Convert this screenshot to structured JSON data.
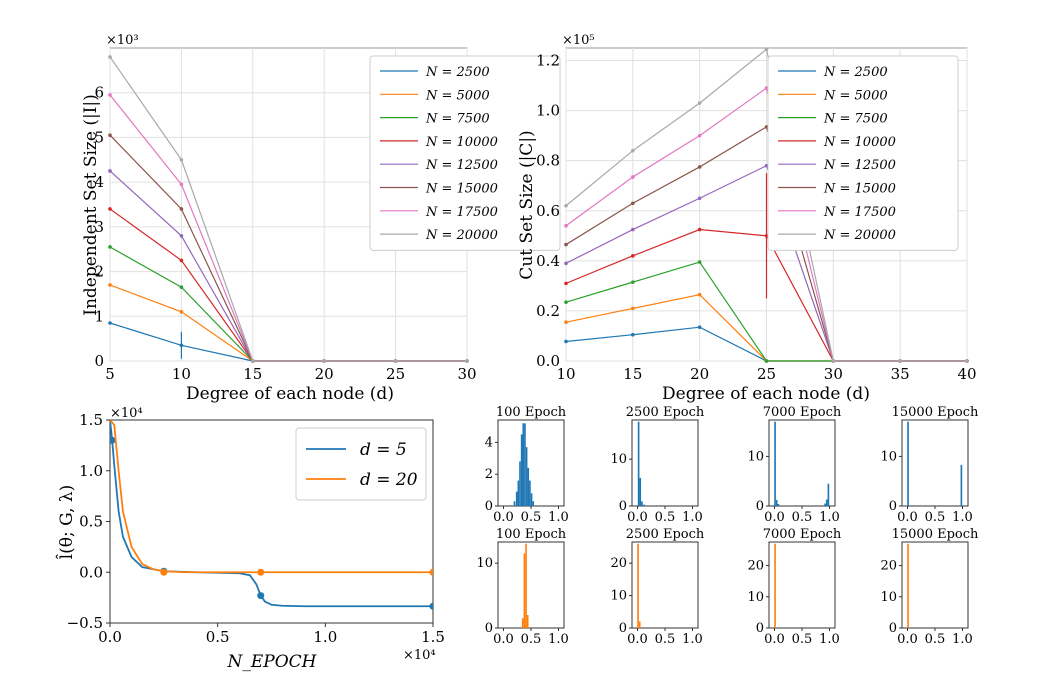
{
  "chart_data": [
    {
      "type": "line",
      "ylabel": "Independent Set Size (|I|)",
      "xlabel": "Degree of each node (d)",
      "y_multiplier": "×10³",
      "x": [
        5,
        10,
        15,
        20,
        25,
        30
      ],
      "xlim": [
        5,
        30
      ],
      "ylim": [
        0,
        7
      ],
      "xticks": [
        "5",
        "10",
        "15",
        "20",
        "25",
        "30"
      ],
      "yticks": [
        "0",
        "1",
        "2",
        "3",
        "4",
        "5",
        "6"
      ],
      "ytick_values": [
        0,
        1,
        2,
        3,
        4,
        5,
        6
      ],
      "grid": true,
      "legend": "top-right",
      "series": [
        {
          "name": "N = 2500",
          "color": "#1f77b4",
          "values": [
            0.85,
            0.35,
            0,
            0,
            0,
            0
          ],
          "err": [
            0,
            0.3,
            0,
            0,
            0,
            0
          ]
        },
        {
          "name": "N = 5000",
          "color": "#ff7f0e",
          "values": [
            1.7,
            1.1,
            0,
            0,
            0,
            0
          ]
        },
        {
          "name": "N = 7500",
          "color": "#2ca02c",
          "values": [
            2.55,
            1.65,
            0,
            0,
            0,
            0
          ]
        },
        {
          "name": "N = 10000",
          "color": "#d62728",
          "values": [
            3.4,
            2.25,
            0,
            0,
            0,
            0
          ]
        },
        {
          "name": "N = 12500",
          "color": "#9467bd",
          "values": [
            4.25,
            2.8,
            0,
            0,
            0,
            0
          ]
        },
        {
          "name": "N = 15000",
          "color": "#8c564b",
          "values": [
            5.05,
            3.4,
            0,
            0,
            0,
            0
          ]
        },
        {
          "name": "N = 17500",
          "color": "#e377c2",
          "values": [
            5.95,
            3.95,
            0,
            0,
            0,
            0
          ]
        },
        {
          "name": "N = 20000",
          "color": "#a9a9a9",
          "values": [
            6.8,
            4.5,
            0,
            0,
            0,
            0
          ]
        }
      ]
    },
    {
      "type": "line",
      "ylabel": "Cut Set Size (|C|)",
      "xlabel": "Degree of each node (d)",
      "y_multiplier": "×10⁵",
      "x": [
        10,
        15,
        20,
        25,
        30,
        35,
        40
      ],
      "xlim": [
        10,
        40
      ],
      "ylim": [
        0,
        1.25
      ],
      "xticks": [
        "10",
        "15",
        "20",
        "25",
        "30",
        "35",
        "40"
      ],
      "yticks": [
        "0.0",
        "0.2",
        "0.4",
        "0.6",
        "0.8",
        "1.0",
        "1.2"
      ],
      "ytick_values": [
        0,
        0.2,
        0.4,
        0.6,
        0.8,
        1.0,
        1.2
      ],
      "grid": true,
      "legend": "top-right",
      "series": [
        {
          "name": "N = 2500",
          "color": "#1f77b4",
          "values": [
            0.078,
            0.105,
            0.135,
            0,
            0,
            0,
            0
          ]
        },
        {
          "name": "N = 5000",
          "color": "#ff7f0e",
          "values": [
            0.155,
            0.21,
            0.265,
            0,
            0,
            0,
            0
          ]
        },
        {
          "name": "N = 7500",
          "color": "#2ca02c",
          "values": [
            0.235,
            0.315,
            0.395,
            0,
            0,
            0,
            0
          ]
        },
        {
          "name": "N = 10000",
          "color": "#d62728",
          "values": [
            0.31,
            0.42,
            0.525,
            0.5,
            0,
            0,
            0
          ],
          "err": [
            0,
            0,
            0,
            0.25,
            0,
            0,
            0
          ]
        },
        {
          "name": "N = 12500",
          "color": "#9467bd",
          "values": [
            0.39,
            0.525,
            0.65,
            0.78,
            0,
            0,
            0
          ]
        },
        {
          "name": "N = 15000",
          "color": "#8c564b",
          "values": [
            0.465,
            0.63,
            0.775,
            0.935,
            0,
            0,
            0
          ]
        },
        {
          "name": "N = 17500",
          "color": "#e377c2",
          "values": [
            0.54,
            0.735,
            0.9,
            1.09,
            0,
            0,
            0
          ]
        },
        {
          "name": "N = 20000",
          "color": "#a9a9a9",
          "values": [
            0.62,
            0.84,
            1.03,
            1.245,
            0,
            0,
            0
          ]
        }
      ]
    },
    {
      "type": "line",
      "ylabel": "l̂(θ; G, λ)",
      "xlabel": "N_EPOCH",
      "x_multiplier": "×10⁴",
      "y_multiplier": "×10⁴",
      "xlim": [
        0,
        1.5
      ],
      "ylim": [
        -0.5,
        1.5
      ],
      "xticks": [
        "0.0",
        "0.5",
        "1.0",
        "1.5"
      ],
      "yticks": [
        "−0.5",
        "0.0",
        "0.5",
        "1.0",
        "1.5"
      ],
      "legend": "top-right",
      "series": [
        {
          "name": "d = 5",
          "color": "#1f77b4",
          "x": [
            0.0,
            0.01,
            0.02,
            0.04,
            0.06,
            0.1,
            0.15,
            0.25,
            0.4,
            0.6,
            0.65,
            0.68,
            0.7,
            0.72,
            0.75,
            0.8,
            0.9,
            1.0,
            1.2,
            1.5
          ],
          "values": [
            1.5,
            1.3,
            1.05,
            0.6,
            0.35,
            0.15,
            0.05,
            0.01,
            0.0,
            -0.01,
            -0.03,
            -0.12,
            -0.23,
            -0.29,
            -0.32,
            -0.33,
            -0.335,
            -0.335,
            -0.335,
            -0.335
          ],
          "markers_x": [
            0.01,
            0.25,
            0.7,
            1.5
          ],
          "markers_y": [
            1.3,
            0.01,
            -0.23,
            -0.335
          ]
        },
        {
          "name": "d = 20",
          "color": "#ff7f0e",
          "x": [
            0.0,
            0.02,
            0.04,
            0.06,
            0.1,
            0.15,
            0.2,
            0.25,
            0.35,
            0.5,
            1.0,
            1.5
          ],
          "values": [
            1.5,
            1.45,
            1.0,
            0.6,
            0.25,
            0.08,
            0.03,
            0.01,
            0.0,
            0.0,
            0.0,
            0.0
          ],
          "markers_x": [
            0.25,
            0.7,
            1.5
          ],
          "markers_y": [
            0.0,
            0.0,
            0.0
          ]
        }
      ]
    },
    {
      "type": "bar",
      "subtype": "histogram",
      "panels": [
        {
          "title": "100 Epoch",
          "color": "#1f77b4",
          "xticks": [
            "0.0",
            "0.5",
            "1.0"
          ],
          "yticks": [
            "0",
            "2",
            "4"
          ],
          "ymax": 5.3,
          "bins": [
            [
              0.2,
              0.3
            ],
            [
              0.24,
              0.9
            ],
            [
              0.27,
              1.6
            ],
            [
              0.3,
              2.8
            ],
            [
              0.33,
              4.5
            ],
            [
              0.36,
              5.2
            ],
            [
              0.39,
              5.2
            ],
            [
              0.42,
              3.7
            ],
            [
              0.45,
              2.4
            ],
            [
              0.48,
              1.6
            ],
            [
              0.51,
              0.8
            ],
            [
              0.54,
              0.3
            ]
          ]
        },
        {
          "title": "2500 Epoch",
          "color": "#1f77b4",
          "xticks": [
            "0.0",
            "0.5",
            "1.0"
          ],
          "yticks": [
            "0",
            "10"
          ],
          "ymax": 18,
          "bins": [
            [
              0.02,
              18
            ],
            [
              0.05,
              6
            ],
            [
              0.08,
              1
            ],
            [
              0.12,
              0.3
            ]
          ]
        },
        {
          "title": "7000 Epoch",
          "color": "#1f77b4",
          "xticks": [
            "0.0",
            "0.5",
            "1.0"
          ],
          "yticks": [
            "0",
            "10"
          ],
          "ymax": 17,
          "bins": [
            [
              0.01,
              17
            ],
            [
              0.04,
              1.2
            ],
            [
              0.07,
              0.4
            ],
            [
              0.92,
              0.5
            ],
            [
              0.95,
              1.3
            ],
            [
              0.98,
              4.5
            ]
          ]
        },
        {
          "title": "15000 Epoch",
          "color": "#1f77b4",
          "xticks": [
            "0.0",
            "0.5",
            "1.0"
          ],
          "yticks": [
            "0",
            "10"
          ],
          "ymax": 17,
          "bins": [
            [
              0.01,
              17
            ],
            [
              0.98,
              8.3
            ]
          ]
        },
        {
          "title": "100 Epoch",
          "color": "#ff7f0e",
          "xticks": [
            "0.0",
            "0.5",
            "1.0"
          ],
          "yticks": [
            "0",
            "10"
          ],
          "ymax": 13,
          "bins": [
            [
              0.35,
              1.5
            ],
            [
              0.38,
              11.5
            ],
            [
              0.41,
              13
            ],
            [
              0.44,
              2
            ]
          ]
        },
        {
          "title": "2500 Epoch",
          "color": "#ff7f0e",
          "xticks": [
            "0.0",
            "0.5",
            "1.0"
          ],
          "yticks": [
            "0",
            "10",
            "20"
          ],
          "ymax": 26,
          "bins": [
            [
              0.01,
              26
            ],
            [
              0.04,
              2
            ]
          ]
        },
        {
          "title": "7000 Epoch",
          "color": "#ff7f0e",
          "xticks": [
            "0.0",
            "0.5",
            "1.0"
          ],
          "yticks": [
            "0",
            "10",
            "20"
          ],
          "ymax": 27,
          "bins": [
            [
              0.01,
              27
            ]
          ]
        },
        {
          "title": "15000 Epoch",
          "color": "#ff7f0e",
          "xticks": [
            "0.0",
            "0.5",
            "1.0"
          ],
          "yticks": [
            "0",
            "10",
            "20"
          ],
          "ymax": 27,
          "bins": [
            [
              0.01,
              27
            ]
          ]
        }
      ]
    }
  ]
}
